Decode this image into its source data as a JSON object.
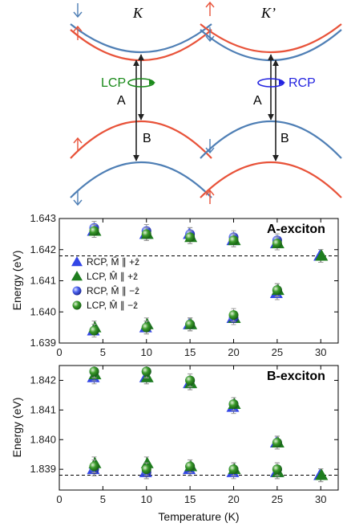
{
  "diagram": {
    "left_label": "K",
    "right_label": "K’",
    "lcp_label": "LCP",
    "rcp_label": "RCP",
    "transition_a": "A",
    "transition_b": "B",
    "colors": {
      "spin_up": "#e8533a",
      "spin_down": "#4f7fb5",
      "lcp": "#1a8a1a",
      "rcp": "#2323e0"
    }
  },
  "legend": [
    {
      "label": "RCP, M̂ ∥ +ẑ",
      "marker": "triangle",
      "color": "#3346e6"
    },
    {
      "label": "LCP, M̂ ∥ +ẑ",
      "marker": "triangle",
      "color": "#1e7d1e"
    },
    {
      "label": "RCP, M̂ ∥ −ẑ",
      "marker": "sphere",
      "color": "#3346e6"
    },
    {
      "label": "LCP, M̂ ∥ −ẑ",
      "marker": "sphere",
      "color": "#1e7d1e"
    }
  ],
  "chart_data": [
    {
      "type": "scatter",
      "title": "A-exciton",
      "ylabel": "Energy (eV)",
      "xlabel": "",
      "xlim": [
        0,
        32
      ],
      "ylim": [
        1.639,
        1.643
      ],
      "xticks": [
        0,
        5,
        10,
        15,
        20,
        25,
        30
      ],
      "yticks": [
        "1.639",
        "1.640",
        "1.641",
        "1.642",
        "1.643"
      ],
      "reference_line": 1.6418,
      "series": [
        {
          "name": "RCP, M̂ ∥ +ẑ",
          "x": [
            4,
            10,
            15,
            20,
            25,
            30
          ],
          "upper": [
            1.6426,
            1.6425,
            1.6425,
            1.6423,
            1.6422,
            1.6418
          ],
          "lower": [
            1.6394,
            1.6395,
            1.6396,
            1.6398,
            1.6406,
            1.6418
          ]
        },
        {
          "name": "LCP, M̂ ∥ +ẑ",
          "x": [
            4,
            10,
            15,
            20,
            25,
            30
          ],
          "upper": [
            1.6426,
            1.6425,
            1.6424,
            1.6423,
            1.6422,
            1.6418
          ],
          "lower": [
            1.6395,
            1.6396,
            1.6396,
            1.6398,
            1.6407,
            1.6418
          ]
        },
        {
          "name": "RCP, M̂ ∥ −ẑ",
          "x": [
            4,
            10,
            15,
            20,
            25
          ],
          "upper": [
            1.6427,
            1.6426,
            1.6425,
            1.6424,
            1.6423
          ],
          "lower": [
            1.6394,
            1.6395,
            1.6396,
            1.6398,
            1.6407
          ]
        },
        {
          "name": "LCP, M̂ ∥ −ẑ",
          "x": [
            4,
            10,
            15,
            20,
            25
          ],
          "upper": [
            1.6426,
            1.6425,
            1.6424,
            1.6423,
            1.6422
          ],
          "lower": [
            1.6394,
            1.6395,
            1.6396,
            1.6399,
            1.6407
          ]
        }
      ]
    },
    {
      "type": "scatter",
      "title": "B-exciton",
      "ylabel": "Energy (eV)",
      "xlabel": "Temperature (K)",
      "xlim": [
        0,
        32
      ],
      "ylim": [
        1.8383,
        1.8425
      ],
      "xticks": [
        0,
        5,
        10,
        15,
        20,
        25,
        30
      ],
      "yticks": [
        "1.839",
        "1.840",
        "1.841",
        "1.842"
      ],
      "reference_line": 1.8388,
      "series": [
        {
          "name": "RCP, M̂ ∥ +ẑ",
          "x": [
            4,
            10,
            15,
            20,
            25,
            30
          ],
          "upper": [
            1.8421,
            1.8421,
            1.8419,
            1.8411,
            1.8399,
            1.8388
          ],
          "lower": [
            1.839,
            1.8389,
            1.839,
            1.8389,
            1.8389,
            1.8388
          ]
        },
        {
          "name": "LCP, M̂ ∥ +ẑ",
          "x": [
            4,
            10,
            15,
            20,
            25,
            30
          ],
          "upper": [
            1.8422,
            1.8421,
            1.8419,
            1.8412,
            1.8399,
            1.8388
          ],
          "lower": [
            1.8392,
            1.8392,
            1.8391,
            1.839,
            1.8389,
            1.8388
          ]
        },
        {
          "name": "RCP, M̂ ∥ −ẑ",
          "x": [
            4,
            10,
            15,
            20,
            25
          ],
          "upper": [
            1.8423,
            1.8423,
            1.842,
            1.8412,
            1.8399
          ],
          "lower": [
            1.839,
            1.8389,
            1.8391,
            1.839,
            1.839
          ]
        },
        {
          "name": "LCP, M̂ ∥ −ẑ",
          "x": [
            4,
            10,
            15,
            20,
            25
          ],
          "upper": [
            1.8423,
            1.8423,
            1.842,
            1.8412,
            1.8399
          ],
          "lower": [
            1.8391,
            1.839,
            1.8391,
            1.839,
            1.839
          ]
        }
      ]
    }
  ]
}
